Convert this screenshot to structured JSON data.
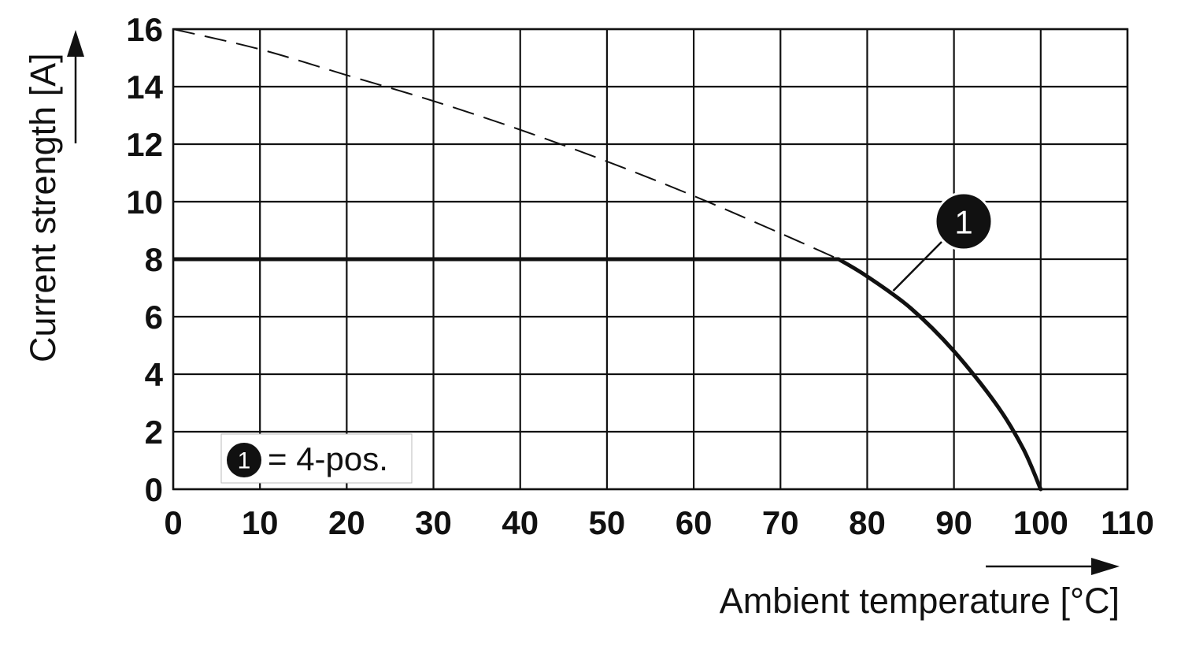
{
  "chart_data": {
    "type": "line",
    "xlabel": "Ambient temperature [°C]",
    "ylabel": "Current strength [A]",
    "xlim": [
      0,
      110
    ],
    "ylim": [
      0,
      16
    ],
    "x_ticks": [
      "0",
      "10",
      "20",
      "30",
      "40",
      "50",
      "60",
      "70",
      "80",
      "90",
      "100",
      "110"
    ],
    "y_ticks": [
      "0",
      "2",
      "4",
      "6",
      "8",
      "10",
      "12",
      "14",
      "16"
    ],
    "grid": true,
    "series": [
      {
        "marker": "1",
        "style": "solid",
        "x": [
          0,
          76.7,
          80,
          85,
          90,
          95,
          98,
          100
        ],
        "y": [
          8,
          8,
          7.4,
          6.3,
          4.8,
          2.9,
          1.4,
          0
        ]
      },
      {
        "style": "dashed",
        "x": [
          0,
          10,
          20,
          30,
          40,
          50,
          60,
          70,
          76.7
        ],
        "y": [
          16,
          15.3,
          14.4,
          13.5,
          12.5,
          11.4,
          10.2,
          8.9,
          8
        ]
      }
    ],
    "legend": {
      "marker": "1",
      "text": "= 4-pos.",
      "position": "bottom-left"
    },
    "colors": {
      "line": "#111111",
      "grid": "#111111",
      "marker_fill": "#111111"
    }
  }
}
